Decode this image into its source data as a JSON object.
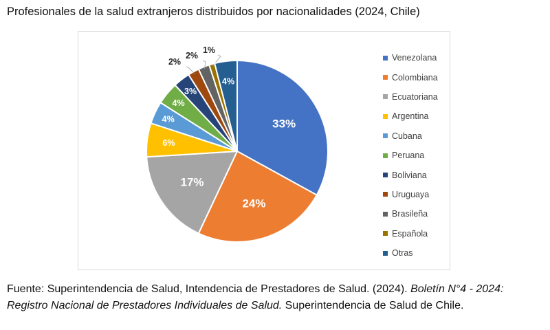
{
  "title": "Profesionales de la salud extranjeros distribuidos por nacionalidades (2024, Chile)",
  "source": {
    "prefix": "Fuente: Superintendencia de Salud, Intendencia de Prestadores de Salud. (2024). ",
    "italic": "Boletín N°4 - 2024: Registro Nacional de Prestadores Individuales de Salud.",
    "suffix": " Superintendencia de Salud de Chile."
  },
  "chart_data": {
    "type": "pie",
    "title": "",
    "start_angle_deg": 0,
    "direction": "clockwise",
    "legend_position": "right",
    "slices": [
      {
        "label": "Venezolana",
        "value": 33,
        "display": "33%",
        "color": "#4472C4",
        "label_color": "#ffffff"
      },
      {
        "label": "Colombiana",
        "value": 24,
        "display": "24%",
        "color": "#ED7D31",
        "label_color": "#ffffff"
      },
      {
        "label": "Ecuatoriana",
        "value": 17,
        "display": "17%",
        "color": "#A5A5A5",
        "label_color": "#ffffff"
      },
      {
        "label": "Argentina",
        "value": 6,
        "display": "6%",
        "color": "#FFC000",
        "label_color": "#ffffff"
      },
      {
        "label": "Cubana",
        "value": 4,
        "display": "4%",
        "color": "#5B9BD5",
        "label_color": "#ffffff"
      },
      {
        "label": "Peruana",
        "value": 4,
        "display": "4%",
        "color": "#70AD47",
        "label_color": "#ffffff"
      },
      {
        "label": "Boliviana",
        "value": 3,
        "display": "3%",
        "color": "#264478",
        "label_color": "#ffffff"
      },
      {
        "label": "Uruguaya",
        "value": 2,
        "display": "2%",
        "color": "#9E480E",
        "label_color": "#262626"
      },
      {
        "label": "Brasileña",
        "value": 2,
        "display": "2%",
        "color": "#636363",
        "label_color": "#262626"
      },
      {
        "label": "Española",
        "value": 1,
        "display": "1%",
        "color": "#997300",
        "label_color": "#262626"
      },
      {
        "label": "Otras",
        "value": 4,
        "display": "4%",
        "color": "#255E91",
        "label_color": "#ffffff"
      }
    ]
  }
}
